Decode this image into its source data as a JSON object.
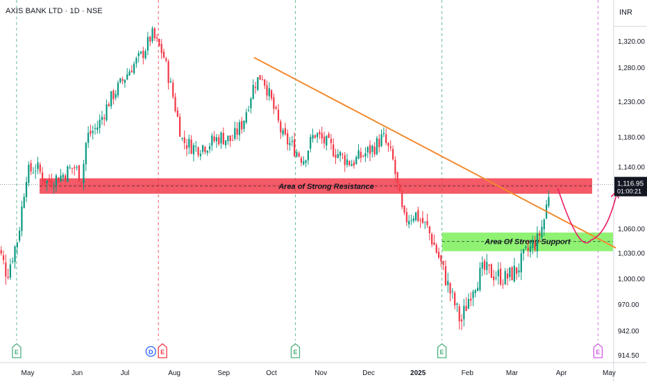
{
  "header": {
    "title": "AXIS BANK LTD · 1D · NSE",
    "currency": "INR"
  },
  "colors": {
    "up": "#089981",
    "down": "#f23645",
    "trendline": "#f28a2e",
    "resistance": "#f23645",
    "support": "#7cf05a",
    "arrow": "#e91e63",
    "grid": "#d1d4dc"
  },
  "chart_data": {
    "type": "candlestick",
    "title": "AXIS BANK LTD · 1D · NSE",
    "ylabel": "INR",
    "y_axis_ticks": [
      914.5,
      942.0,
      970.0,
      1000.0,
      1030.0,
      1060.0,
      1140.0,
      1180.0,
      1230.0,
      1280.0,
      1320.0
    ],
    "y_tick_labels": [
      "914.50",
      "942.00",
      "970.00",
      "1,000.00",
      "1,030.00",
      "1,060.00",
      "1,140.00",
      "1,180.00",
      "1,230.00",
      "1,280.00",
      "1,320.00"
    ],
    "x_tick_labels": [
      "May",
      "Jun",
      "Jul",
      "Aug",
      "Sep",
      "Oct",
      "Nov",
      "Dec",
      "2025",
      "Feb",
      "Mar",
      "Apr",
      "May"
    ],
    "last_price": {
      "value": "1,116.95",
      "countdown": "01:00:21"
    },
    "price_path": [
      [
        "2024-04-10",
        1050
      ],
      [
        "2024-04-18",
        1005
      ],
      [
        "2024-04-25",
        1050
      ],
      [
        "2024-04-30",
        1130
      ],
      [
        "2024-05-06",
        1140
      ],
      [
        "2024-05-13",
        1120
      ],
      [
        "2024-05-22",
        1128
      ],
      [
        "2024-05-30",
        1140
      ],
      [
        "2024-06-04",
        1125
      ],
      [
        "2024-06-07",
        1180
      ],
      [
        "2024-06-14",
        1195
      ],
      [
        "2024-06-21",
        1230
      ],
      [
        "2024-06-28",
        1255
      ],
      [
        "2024-07-05",
        1280
      ],
      [
        "2024-07-12",
        1300
      ],
      [
        "2024-07-18",
        1330
      ],
      [
        "2024-07-25",
        1300
      ],
      [
        "2024-07-30",
        1250
      ],
      [
        "2024-08-06",
        1175
      ],
      [
        "2024-08-14",
        1165
      ],
      [
        "2024-08-22",
        1170
      ],
      [
        "2024-08-30",
        1180
      ],
      [
        "2024-09-06",
        1175
      ],
      [
        "2024-09-13",
        1200
      ],
      [
        "2024-09-20",
        1255
      ],
      [
        "2024-09-25",
        1270
      ],
      [
        "2024-10-01",
        1230
      ],
      [
        "2024-10-08",
        1180
      ],
      [
        "2024-10-15",
        1165
      ],
      [
        "2024-10-21",
        1150
      ],
      [
        "2024-10-28",
        1185
      ],
      [
        "2024-11-05",
        1170
      ],
      [
        "2024-11-13",
        1155
      ],
      [
        "2024-11-20",
        1145
      ],
      [
        "2024-11-27",
        1155
      ],
      [
        "2024-12-04",
        1165
      ],
      [
        "2024-12-10",
        1180
      ],
      [
        "2024-12-16",
        1150
      ],
      [
        "2024-12-23",
        1070
      ],
      [
        "2024-12-30",
        1080
      ],
      [
        "2025-01-07",
        1060
      ],
      [
        "2025-01-14",
        1025
      ],
      [
        "2025-01-21",
        985
      ],
      [
        "2025-01-28",
        950
      ],
      [
        "2025-02-04",
        990
      ],
      [
        "2025-02-11",
        1010
      ],
      [
        "2025-02-18",
        1005
      ],
      [
        "2025-02-25",
        1000
      ],
      [
        "2025-03-04",
        1010
      ],
      [
        "2025-03-10",
        1030
      ],
      [
        "2025-03-17",
        1045
      ],
      [
        "2025-03-21",
        1070
      ],
      [
        "2025-03-25",
        1116.95
      ]
    ],
    "annotations": [
      {
        "type": "trendline",
        "from": [
          "2024-09-20",
          1295
        ],
        "to": [
          "2025-04-30",
          1040
        ]
      },
      {
        "type": "zone",
        "label": "Area of Strong Resistance",
        "y_top": 1125,
        "y_bottom": 1105,
        "from": "2024-05-01",
        "to": "2025-04-30"
      },
      {
        "type": "zone",
        "label": "Area Of Strong Support",
        "y_top": 1055,
        "y_bottom": 1032,
        "from": "2025-01-21",
        "to": "2025-04-30",
        "dashed_line": 1044
      },
      {
        "type": "arrow",
        "path": [
          [
            "2025-03-28",
            1112
          ],
          [
            "2025-04-17",
            1044
          ],
          [
            "2025-04-30",
            1110
          ]
        ]
      }
    ],
    "events": [
      {
        "date": "2024-04-24",
        "marker": "E"
      },
      {
        "date": "2024-07-19",
        "marker": "D"
      },
      {
        "date": "2024-07-22",
        "marker": "E"
      },
      {
        "date": "2024-10-16",
        "marker": "E"
      },
      {
        "date": "2025-01-16",
        "marker": "E"
      },
      {
        "date": "2025-04-24",
        "marker": "E"
      }
    ]
  }
}
